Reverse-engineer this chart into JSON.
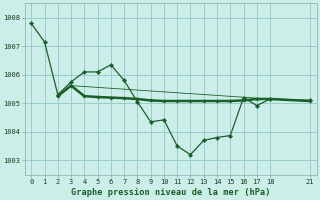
{
  "title": "Graphe pression niveau de la mer (hPa)",
  "bg_color": "#cceee8",
  "grid_color": "#99cccc",
  "line_color": "#1a5e2a",
  "xlim": [
    -0.5,
    21.5
  ],
  "ylim": [
    1002.5,
    1008.5
  ],
  "yticks": [
    1003,
    1004,
    1005,
    1006,
    1007,
    1008
  ],
  "xticks": [
    0,
    1,
    2,
    3,
    4,
    5,
    6,
    7,
    8,
    9,
    10,
    11,
    12,
    13,
    14,
    15,
    16,
    17,
    18,
    21
  ],
  "series1_x": [
    0,
    1,
    2,
    3,
    4,
    5,
    6,
    7,
    8,
    9,
    10,
    11,
    12,
    13,
    14,
    15,
    16,
    17,
    18,
    21
  ],
  "series1_y": [
    1007.8,
    1007.15,
    1005.3,
    1005.75,
    1006.1,
    1006.1,
    1006.35,
    1005.8,
    1005.05,
    1004.35,
    1004.42,
    1003.5,
    1003.2,
    1003.7,
    1003.8,
    1003.87,
    1005.2,
    1004.92,
    1005.15,
    1005.1
  ],
  "series2_x": [
    2,
    3,
    4,
    5,
    6,
    7,
    8,
    9,
    10,
    11,
    12,
    13,
    14,
    15,
    16,
    17,
    18,
    21
  ],
  "series2_y": [
    1005.25,
    1005.62,
    1005.25,
    1005.22,
    1005.2,
    1005.18,
    1005.15,
    1005.1,
    1005.08,
    1005.08,
    1005.08,
    1005.08,
    1005.08,
    1005.08,
    1005.1,
    1005.15,
    1005.15,
    1005.08
  ],
  "series3_x": [
    2,
    3,
    18,
    21
  ],
  "series3_y": [
    1005.25,
    1005.62,
    1005.15,
    1005.08
  ]
}
